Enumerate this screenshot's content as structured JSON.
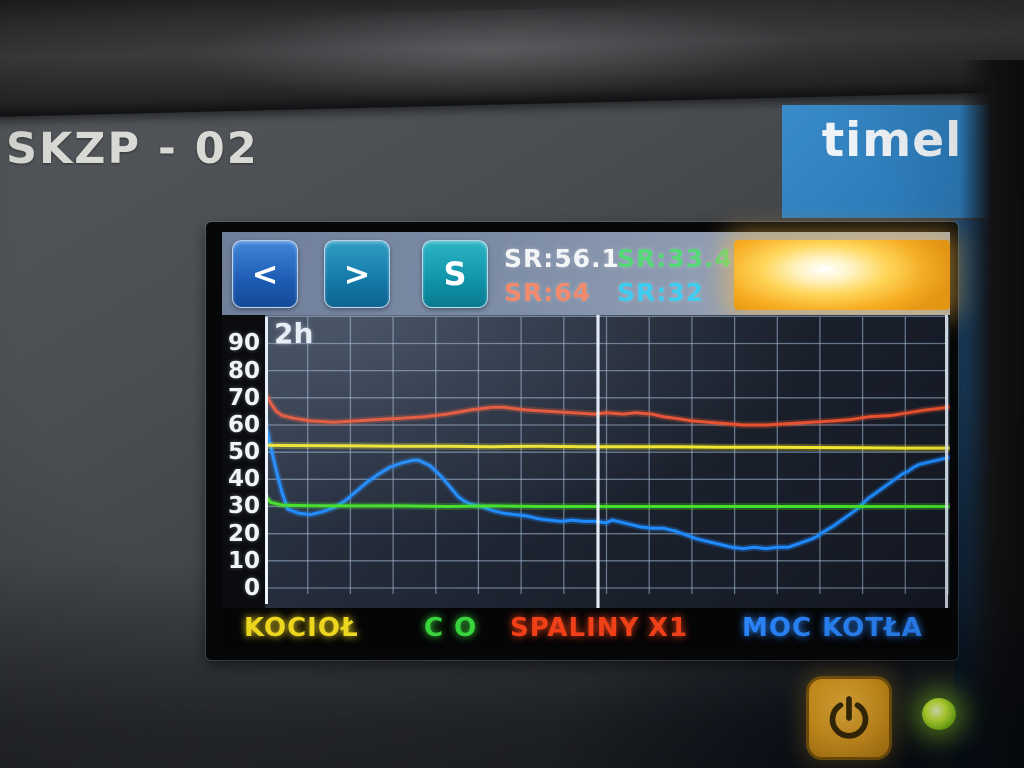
{
  "device": {
    "model_label": "SKZP - 02",
    "brand_label": "timel",
    "status_led_color": "#9be32a"
  },
  "screen": {
    "toolbar": {
      "buttons": [
        {
          "label": "<"
        },
        {
          "label": ">"
        },
        {
          "label": "S"
        }
      ],
      "readings": [
        {
          "text": "SR:56.1",
          "color": "#f3f5f7"
        },
        {
          "text": "SR:33.4",
          "color": "#55d877"
        },
        {
          "text": "SR:64",
          "color": "#f28a6b"
        },
        {
          "text": "SR:32",
          "color": "#3dcdf0"
        }
      ],
      "flame_indicator_color": "#f7ae24"
    },
    "chart_data": {
      "type": "line",
      "time_window_label": "2h",
      "x_range_minutes": [
        0,
        120
      ],
      "ylim": [
        0,
        100
      ],
      "yticks": [
        90,
        80,
        70,
        60,
        50,
        40,
        30,
        20,
        10,
        0
      ],
      "x_grid_divisions": 16,
      "y_grid_step": 10,
      "grid": true,
      "cursor_minute": 58.5,
      "series": [
        {
          "name": "SPALINY X1",
          "color": "#e8512f",
          "points": [
            [
              0,
              72
            ],
            [
              1,
              68
            ],
            [
              2,
              65
            ],
            [
              3,
              63.5
            ],
            [
              5,
              62.5
            ],
            [
              8,
              61.5
            ],
            [
              12,
              61
            ],
            [
              16,
              61.5
            ],
            [
              20,
              62
            ],
            [
              24,
              62.5
            ],
            [
              28,
              63
            ],
            [
              32,
              64
            ],
            [
              36,
              65.5
            ],
            [
              40,
              66.5
            ],
            [
              42,
              66.5
            ],
            [
              44,
              66
            ],
            [
              46,
              65.5
            ],
            [
              50,
              65
            ],
            [
              54,
              64.5
            ],
            [
              58,
              64
            ],
            [
              60,
              64.5
            ],
            [
              63,
              64
            ],
            [
              65,
              64.5
            ],
            [
              68,
              64
            ],
            [
              70,
              63
            ],
            [
              72,
              62.5
            ],
            [
              75,
              61.5
            ],
            [
              78,
              61
            ],
            [
              81,
              60.5
            ],
            [
              84,
              60
            ],
            [
              88,
              60
            ],
            [
              92,
              60.5
            ],
            [
              96,
              61
            ],
            [
              100,
              61.5
            ],
            [
              103,
              62
            ],
            [
              106,
              63
            ],
            [
              110,
              63.5
            ],
            [
              113,
              64.5
            ],
            [
              116,
              65.5
            ],
            [
              118,
              66
            ],
            [
              120,
              66.5
            ]
          ]
        },
        {
          "name": "MOC KOTŁA",
          "color": "#1f8bff",
          "points": [
            [
              0,
              62
            ],
            [
              1,
              52
            ],
            [
              2,
              43
            ],
            [
              3,
              35
            ],
            [
              4,
              29
            ],
            [
              6,
              27.5
            ],
            [
              8,
              27
            ],
            [
              10,
              28
            ],
            [
              12,
              29.5
            ],
            [
              14,
              32
            ],
            [
              16,
              35.5
            ],
            [
              18,
              39
            ],
            [
              20,
              42
            ],
            [
              22,
              44.5
            ],
            [
              24,
              46
            ],
            [
              26,
              47
            ],
            [
              27,
              47
            ],
            [
              28,
              46
            ],
            [
              29,
              45
            ],
            [
              30,
              43
            ],
            [
              31,
              41
            ],
            [
              32,
              38.5
            ],
            [
              33,
              36
            ],
            [
              34,
              33.5
            ],
            [
              35,
              32
            ],
            [
              36,
              31
            ],
            [
              38,
              30
            ],
            [
              40,
              28.5
            ],
            [
              42,
              27.5
            ],
            [
              44,
              27
            ],
            [
              46,
              26.5
            ],
            [
              48,
              25.5
            ],
            [
              50,
              25
            ],
            [
              52,
              24.5
            ],
            [
              54,
              25
            ],
            [
              56,
              24.5
            ],
            [
              58,
              24.5
            ],
            [
              60,
              24
            ],
            [
              61,
              25
            ],
            [
              62,
              24.5
            ],
            [
              64,
              23.5
            ],
            [
              66,
              22.5
            ],
            [
              68,
              22
            ],
            [
              70,
              22
            ],
            [
              72,
              21
            ],
            [
              74,
              19.5
            ],
            [
              76,
              18
            ],
            [
              78,
              17
            ],
            [
              80,
              16
            ],
            [
              82,
              15
            ],
            [
              84,
              14.5
            ],
            [
              86,
              15
            ],
            [
              88,
              14.5
            ],
            [
              90,
              15
            ],
            [
              92,
              15
            ],
            [
              94,
              16.5
            ],
            [
              96,
              18
            ],
            [
              97,
              19
            ],
            [
              98,
              20.5
            ],
            [
              100,
              23
            ],
            [
              101,
              24.5
            ],
            [
              102,
              26
            ],
            [
              103,
              27.5
            ],
            [
              104,
              29
            ],
            [
              105,
              31
            ],
            [
              106,
              33
            ],
            [
              107,
              34.5
            ],
            [
              108,
              36
            ],
            [
              109,
              37.5
            ],
            [
              110,
              39
            ],
            [
              111,
              40.5
            ],
            [
              112,
              42
            ],
            [
              113,
              43
            ],
            [
              114,
              44.5
            ],
            [
              115,
              45.5
            ],
            [
              116,
              46
            ],
            [
              117,
              46.5
            ],
            [
              118,
              47
            ],
            [
              119,
              47.5
            ],
            [
              120,
              48
            ]
          ]
        },
        {
          "name": "C O",
          "color": "#46e02a",
          "points": [
            [
              0,
              34
            ],
            [
              1,
              31.5
            ],
            [
              3,
              30.5
            ],
            [
              8,
              30.3
            ],
            [
              16,
              30.2
            ],
            [
              24,
              30.2
            ],
            [
              32,
              30
            ],
            [
              40,
              30.2
            ],
            [
              48,
              30
            ],
            [
              56,
              30
            ],
            [
              64,
              30
            ],
            [
              72,
              30
            ],
            [
              80,
              30
            ],
            [
              88,
              30
            ],
            [
              96,
              30
            ],
            [
              104,
              30
            ],
            [
              112,
              30
            ],
            [
              120,
              30
            ]
          ]
        },
        {
          "name": "KOCIOŁ",
          "color": "#f2e62e",
          "points": [
            [
              0,
              52.5
            ],
            [
              8,
              52.4
            ],
            [
              16,
              52.3
            ],
            [
              24,
              52.2
            ],
            [
              32,
              52.2
            ],
            [
              40,
              52
            ],
            [
              48,
              52.2
            ],
            [
              56,
              52
            ],
            [
              64,
              52
            ],
            [
              72,
              52
            ],
            [
              80,
              51.8
            ],
            [
              88,
              51.8
            ],
            [
              96,
              51.7
            ],
            [
              104,
              51.6
            ],
            [
              112,
              51.5
            ],
            [
              120,
              51.5
            ]
          ]
        }
      ]
    },
    "legend": [
      {
        "label": "KOCIOŁ",
        "color": "#ecd61f"
      },
      {
        "label": "C O",
        "color": "#39d33c"
      },
      {
        "label": "SPALINY",
        "color": "#f04018"
      },
      {
        "label": "X1",
        "color": "#f04018"
      },
      {
        "label": "MOC KOTŁA",
        "color": "#2b87ff"
      }
    ]
  }
}
